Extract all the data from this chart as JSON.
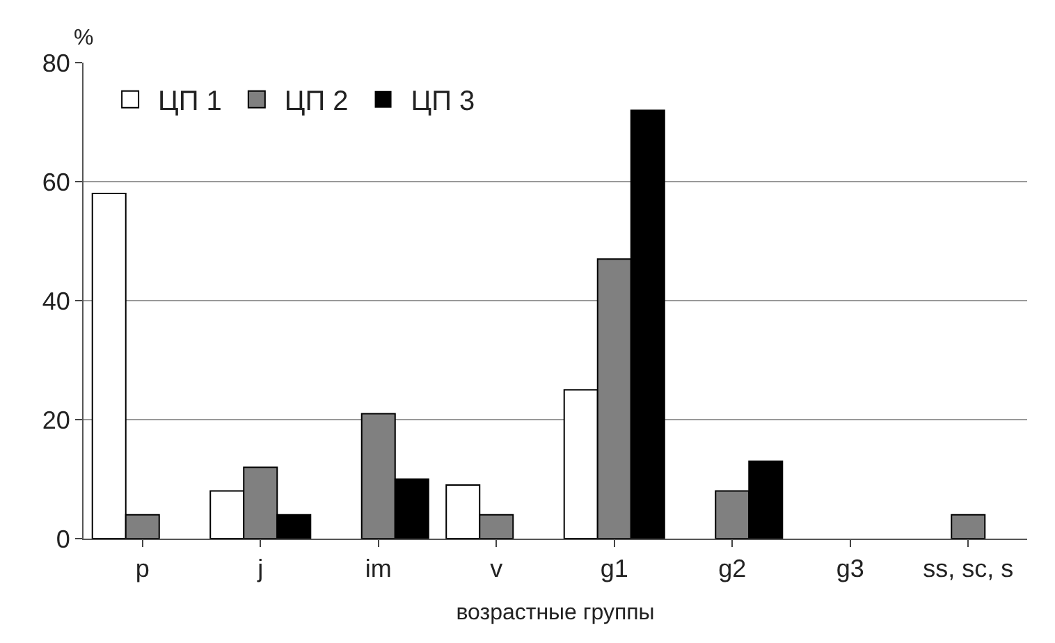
{
  "chart_data": {
    "type": "bar",
    "ylabel": "%",
    "xlabel": "возрастные группы",
    "categories": [
      "p",
      "j",
      "im",
      "v",
      "g1",
      "g2",
      "g3",
      "ss, sc, s"
    ],
    "series": [
      {
        "name": "ЦП 1",
        "color": "#ffffff",
        "values": [
          58,
          8,
          0,
          9,
          25,
          0,
          0,
          0
        ]
      },
      {
        "name": "ЦП 2",
        "color": "#808080",
        "values": [
          4,
          12,
          21,
          4,
          47,
          8,
          0,
          4
        ]
      },
      {
        "name": "ЦП 3",
        "color": "#000000",
        "values": [
          0,
          4,
          10,
          0,
          72,
          13,
          0,
          0
        ]
      }
    ],
    "ylim": [
      0,
      80
    ],
    "yticks": [
      0,
      20,
      40,
      60,
      80
    ],
    "grid": "y",
    "legend": "top left"
  }
}
